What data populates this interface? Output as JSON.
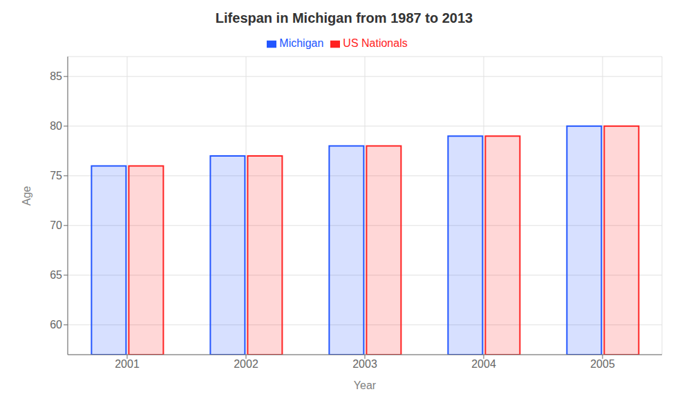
{
  "chart_data": {
    "type": "bar",
    "title": "Lifespan in Michigan from 1987 to 2013",
    "x_label": "Year",
    "y_label": "Age",
    "categories": [
      "2001",
      "2002",
      "2003",
      "2004",
      "2005"
    ],
    "series": [
      {
        "name": "Michigan",
        "color": "#2255ff",
        "values": [
          76,
          77,
          78,
          79,
          80
        ]
      },
      {
        "name": "US Nationals",
        "color": "#ff2222",
        "values": [
          76,
          77,
          78,
          79,
          80
        ]
      }
    ],
    "ylim": [
      57,
      87
    ],
    "yticks": [
      60,
      65,
      70,
      75,
      80,
      85
    ],
    "grid": true,
    "legend": "top"
  }
}
